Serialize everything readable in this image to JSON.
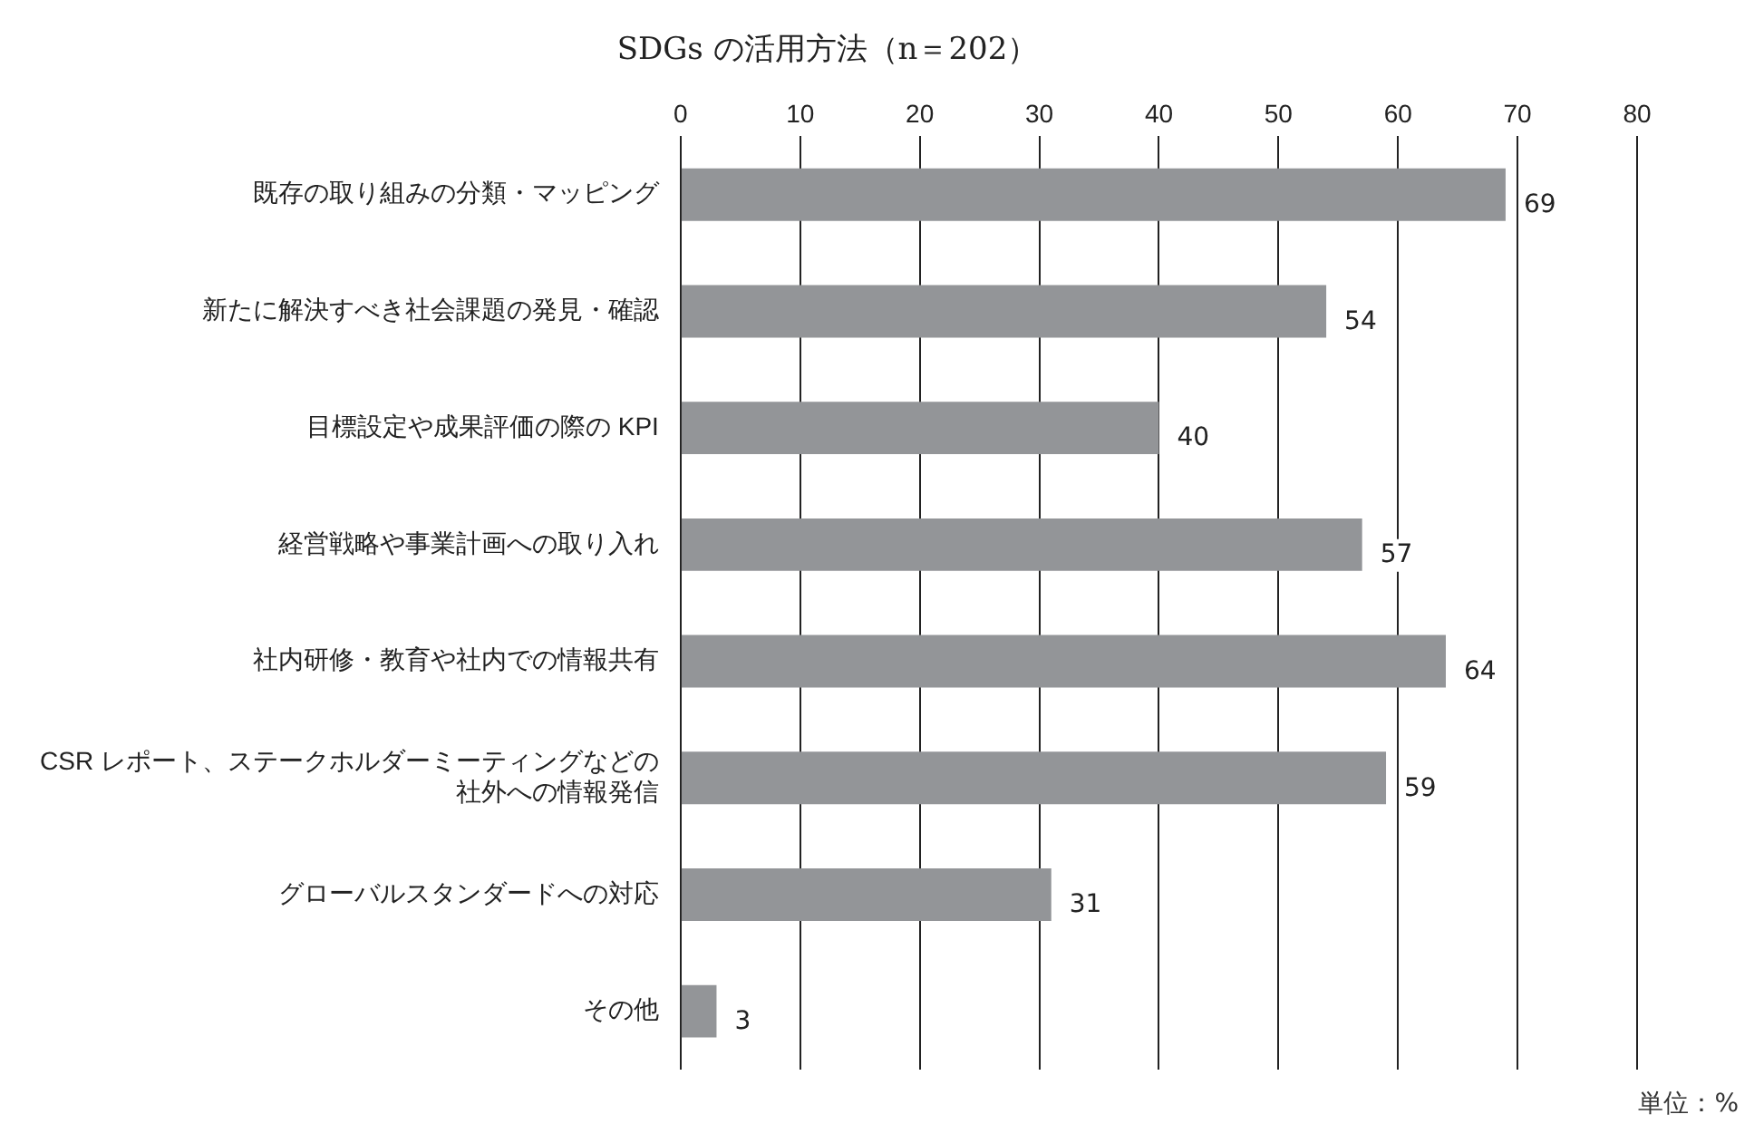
{
  "chart_data": {
    "type": "bar",
    "orientation": "horizontal",
    "title": "SDGs の活用方法（n＝202）",
    "categories": [
      "既存の取り組みの分類・マッピング",
      "新たに解決すべき社会課題の発見・確認",
      "目標設定や成果評価の際の KPI",
      "経営戦略や事業計画への取り入れ",
      "社内研修・教育や社内での情報共有",
      "CSR レポート、ステークホルダーミーティングなどの社外への情報発信",
      "グローバルスタンダードへの対応",
      "その他"
    ],
    "values": [
      69,
      54,
      40,
      57,
      64,
      59,
      31,
      3
    ],
    "color": "#939598",
    "xlim": [
      0,
      80
    ],
    "xticks": [
      0,
      10,
      20,
      30,
      40,
      50,
      60,
      70,
      80
    ],
    "grid": "x",
    "legend": false,
    "data_labels": true,
    "annotations": [
      "単位：%"
    ]
  }
}
